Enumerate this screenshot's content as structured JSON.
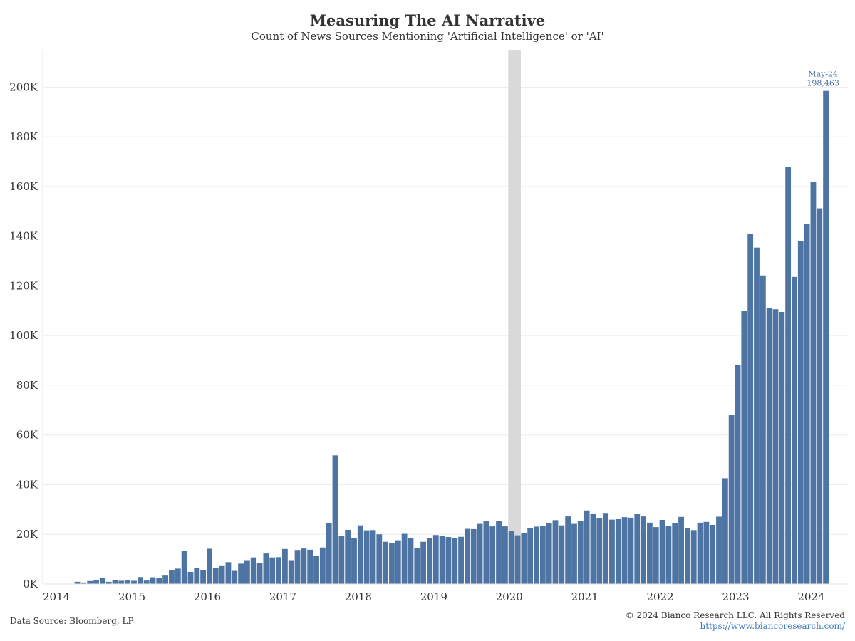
{
  "header": {
    "title": "Measuring The AI Narrative",
    "subtitle": "Count of News Sources Mentioning 'Artificial Intelligence' or 'AI'"
  },
  "footer": {
    "source": "Data Source: Bloomberg, LP",
    "copyright": "© 2024 Bianco Research LLC. All Rights Reserved",
    "link": "https://www.biancoresearch.com/"
  },
  "colors": {
    "bar": "#4e74a4",
    "highlight_band": "#d9d9d9",
    "grid": "#ececec",
    "annotation": "#4e74a4"
  },
  "chart_data": {
    "type": "bar",
    "title": "Measuring The AI Narrative",
    "subtitle": "Count of News Sources Mentioning 'Artificial Intelligence' or 'AI'",
    "xlabel": "",
    "ylabel": "",
    "ylim": [
      0,
      215000
    ],
    "xlim": [
      "2014-01",
      "2024-09"
    ],
    "yticks": [
      0,
      20000,
      40000,
      60000,
      80000,
      100000,
      120000,
      140000,
      160000,
      180000,
      200000
    ],
    "ytick_labels": [
      "0K",
      "20K",
      "40K",
      "60K",
      "80K",
      "100K",
      "120K",
      "140K",
      "160K",
      "180K",
      "200K"
    ],
    "xtick_labels": [
      "2014",
      "2015",
      "2016",
      "2017",
      "2018",
      "2019",
      "2020",
      "2021",
      "2022",
      "2023",
      "2024"
    ],
    "grid": true,
    "highlight_band": {
      "start": "2020-03",
      "end": "2020-04"
    },
    "annotation": {
      "x": "2024-05",
      "line1": "May-24",
      "line2": "198,463"
    },
    "series": [
      {
        "start": "2014-06",
        "values": [
          900,
          600,
          1200,
          1700,
          2600,
          900,
          1600,
          1300,
          1500,
          1300,
          2800,
          1400,
          2700,
          2300,
          3400,
          5500,
          6200,
          13200,
          4900,
          6500,
          5500,
          14200,
          6500,
          7500,
          8800,
          5300,
          8200,
          9600,
          10700,
          8600,
          12300,
          10700,
          10800,
          14100,
          9600,
          13700,
          14300,
          13800,
          11200,
          14700,
          24500,
          51800,
          19200,
          21800,
          18600,
          23600,
          21600,
          21700,
          20000,
          17000,
          16400,
          17600,
          20200,
          18500,
          14600,
          17000,
          18400,
          19700,
          19200,
          18900,
          18500,
          19000,
          22200,
          22100,
          24200,
          25400,
          23200,
          25300,
          23200,
          21200,
          19600,
          20400,
          22600,
          23100,
          23300,
          24500,
          25700,
          23600,
          27200,
          24200,
          25400,
          29600,
          28400,
          26400,
          28600,
          25900,
          26100,
          26900,
          26700,
          28300,
          27200,
          24700,
          22900,
          25800,
          23400,
          24500,
          27000,
          22600,
          21700,
          24700,
          25000,
          23800,
          27100,
          42600,
          68000,
          88100,
          109900,
          141000,
          135400,
          124200,
          111200,
          110600,
          109500,
          167800,
          123600,
          138100,
          144800,
          161900,
          151200,
          198463
        ]
      }
    ]
  }
}
